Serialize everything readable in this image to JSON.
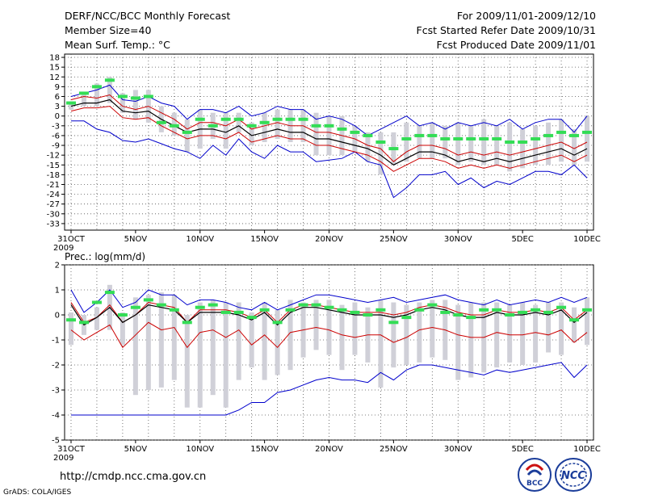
{
  "header": {
    "title": "DERF/NCC/BCC Monthly Forecast",
    "member_size": "Member Size=40",
    "variable": "Mean Surf. Temp.: °C",
    "period": "For 2009/11/01-2009/12/10",
    "start_date": "Fcst Started Refer Date 2009/10/31",
    "produced_date": "Fcst Produced Date 2009/11/01"
  },
  "footer": {
    "url": "http://cmdp.ncc.cma.gov.cn",
    "grads": "GrADS: COLA/IGES",
    "logo_bcc_text": "BCC",
    "logo_ncc_text": "NCC"
  },
  "colors": {
    "ensemble_bar": "#d0d0d8",
    "observed": "#33dd55",
    "max_line": "#0000cc",
    "min_line": "#0000cc",
    "upper_line": "#cc0000",
    "mean_line": "#000000"
  },
  "chart_data": [
    {
      "type": "line",
      "title": "Mean Surf. Temp.: °C",
      "ylim": [
        -35,
        19
      ],
      "yticks": [
        18,
        15,
        12,
        9,
        6,
        3,
        0,
        -3,
        -6,
        -9,
        -12,
        -15,
        -18,
        -21,
        -24,
        -27,
        -30,
        -33
      ],
      "x": [
        1,
        2,
        3,
        4,
        5,
        6,
        7,
        8,
        9,
        10,
        11,
        12,
        13,
        14,
        15,
        16,
        17,
        18,
        19,
        20,
        21,
        22,
        23,
        24,
        25,
        26,
        27,
        28,
        29,
        30,
        31,
        32,
        33,
        34,
        35,
        36,
        37,
        38,
        39,
        40,
        41
      ],
      "xtick_labels": [
        {
          "day": 1,
          "label": "31OCT"
        },
        {
          "day": 6,
          "label": "5NOV"
        },
        {
          "day": 11,
          "label": "10NOV"
        },
        {
          "day": 16,
          "label": "15NOV"
        },
        {
          "day": 21,
          "label": "20NOV"
        },
        {
          "day": 26,
          "label": "25NOV"
        },
        {
          "day": 31,
          "label": "30NOV"
        },
        {
          "day": 36,
          "label": "5DEC"
        },
        {
          "day": 41,
          "label": "10DEC"
        }
      ],
      "year_label": "2009",
      "series": [
        {
          "name": "ensemble max",
          "values": [
            -1.5,
            -1.5,
            -4,
            -5,
            -7.5,
            -8,
            -7,
            -8.5,
            -10,
            -11,
            -13,
            -9,
            -12,
            -7,
            -11,
            -13,
            -9,
            -11,
            -11,
            -14,
            -13.5,
            -13,
            -11,
            -14,
            -15,
            -25,
            -22,
            -18,
            -18,
            -17,
            -21,
            -19,
            -22,
            -20,
            -21,
            -19,
            -17,
            -17,
            -18,
            -15,
            -19
          ]
        },
        {
          "name": "ensemble min",
          "values": [
            6,
            7,
            8,
            9.5,
            5,
            4.5,
            6,
            4,
            3,
            -1,
            2,
            2,
            1,
            3,
            0,
            1,
            3,
            2,
            2,
            -1,
            0,
            -1,
            -3,
            -6,
            -4,
            -2,
            0,
            -3,
            -2,
            -4,
            -2,
            -3,
            -2,
            -3,
            -1,
            -4,
            -2,
            -1,
            -1,
            -5,
            0
          ]
        },
        {
          "name": "upper",
          "values": [
            5,
            6,
            5.5,
            6.5,
            3,
            2,
            3,
            1,
            -1,
            -4,
            -2,
            -2,
            -3,
            -1,
            -4,
            -3,
            -2,
            -3,
            -3,
            -5,
            -5,
            -6,
            -7,
            -9,
            -10,
            -14,
            -11,
            -9,
            -9,
            -10,
            -12,
            -11,
            -12,
            -11,
            -12,
            -11,
            -10,
            -9,
            -8,
            -10,
            -8
          ]
        },
        {
          "name": "mean",
          "values": [
            3,
            4,
            4,
            5,
            1.5,
            1,
            1.5,
            -1,
            -3,
            -5,
            -4,
            -4,
            -5,
            -3,
            -6,
            -5,
            -4,
            -5,
            -5,
            -7,
            -7,
            -8,
            -9,
            -10,
            -12,
            -15,
            -13,
            -11,
            -11,
            -12,
            -14,
            -13,
            -14,
            -13,
            -14,
            -13,
            -12,
            -11,
            -10,
            -12,
            -10
          ]
        },
        {
          "name": "lower",
          "values": [
            1.5,
            2.5,
            2.5,
            3,
            -0.5,
            -1,
            -0.5,
            -3,
            -5,
            -7,
            -6,
            -6,
            -7,
            -5,
            -8,
            -7,
            -6,
            -7,
            -7,
            -9,
            -9,
            -10,
            -11,
            -12,
            -14,
            -17,
            -15,
            -13,
            -13,
            -14,
            -16,
            -15,
            -16,
            -15,
            -16,
            -15,
            -14,
            -13,
            -12,
            -14,
            -12
          ]
        },
        {
          "name": "observed",
          "values": [
            4,
            7,
            9,
            11,
            6,
            5.5,
            6,
            -2,
            -3,
            -5,
            -1,
            -3,
            -1,
            -1,
            -3,
            -2,
            -1,
            -1,
            -1,
            -3,
            -3,
            -4,
            -5,
            -6,
            -8,
            -10,
            -7,
            -6,
            -6,
            -7,
            -7,
            -7,
            -7,
            -7,
            -8,
            -8,
            -7,
            -6,
            -5,
            -6,
            -5
          ]
        },
        {
          "name": "ensemble bar top",
          "values": [
            4,
            7,
            10,
            12,
            7,
            8,
            8,
            3,
            1,
            -1,
            2,
            1,
            1,
            1,
            -2,
            1,
            2,
            2,
            2,
            1,
            0,
            0,
            -3,
            -5,
            -5,
            -5,
            -2,
            -3,
            -2,
            -3,
            -2,
            -3,
            -1,
            -3,
            -2,
            -4,
            -3,
            -2,
            -1,
            -4,
            0
          ]
        },
        {
          "name": "ensemble bar bottom",
          "values": [
            2,
            3,
            3,
            4,
            1,
            -1,
            -2,
            -5,
            -6,
            -11,
            -10,
            -7,
            -10,
            -5,
            -9,
            -8,
            -7,
            -8,
            -8,
            -12,
            -12,
            -12,
            -11,
            -14,
            -18,
            -15,
            -14,
            -13,
            -13,
            -13,
            -15,
            -14,
            -15,
            -15,
            -17,
            -16,
            -15,
            -15,
            -14,
            -15,
            -14
          ]
        }
      ]
    },
    {
      "type": "line",
      "title": "Prec.: log(mm/d)",
      "ylim": [
        -5,
        2
      ],
      "yticks": [
        2,
        1,
        0,
        -1,
        -2,
        -3,
        -4,
        -5
      ],
      "x": [
        1,
        2,
        3,
        4,
        5,
        6,
        7,
        8,
        9,
        10,
        11,
        12,
        13,
        14,
        15,
        16,
        17,
        18,
        19,
        20,
        21,
        22,
        23,
        24,
        25,
        26,
        27,
        28,
        29,
        30,
        31,
        32,
        33,
        34,
        35,
        36,
        37,
        38,
        39,
        40,
        41
      ],
      "xtick_labels": [
        {
          "day": 1,
          "label": "31OCT"
        },
        {
          "day": 6,
          "label": "5NOV"
        },
        {
          "day": 11,
          "label": "10NOV"
        },
        {
          "day": 16,
          "label": "15NOV"
        },
        {
          "day": 21,
          "label": "20NOV"
        },
        {
          "day": 26,
          "label": "25NOV"
        },
        {
          "day": 31,
          "label": "30NOV"
        },
        {
          "day": 36,
          "label": "5DEC"
        },
        {
          "day": 41,
          "label": "10DEC"
        }
      ],
      "year_label": "2009",
      "series": [
        {
          "name": "ensemble max",
          "values": [
            1.0,
            0.1,
            0.5,
            1.0,
            0.3,
            0.5,
            1.0,
            0.8,
            0.8,
            0.4,
            0.6,
            0.6,
            0.5,
            0.3,
            0.2,
            0.5,
            0.2,
            0.4,
            0.6,
            0.8,
            0.8,
            0.7,
            0.6,
            0.5,
            0.6,
            0.7,
            0.5,
            0.6,
            0.7,
            0.8,
            0.6,
            0.5,
            0.4,
            0.6,
            0.4,
            0.5,
            0.6,
            0.5,
            0.7,
            0.5,
            0.7
          ]
        },
        {
          "name": "ensemble min",
          "values": [
            -4,
            -4,
            -4,
            -4,
            -4,
            -4,
            -4,
            -4,
            -4,
            -4,
            -4,
            -4,
            -4,
            -3.8,
            -3.5,
            -3.5,
            -3.1,
            -3.0,
            -2.8,
            -2.6,
            -2.5,
            -2.6,
            -2.6,
            -2.7,
            -2.3,
            -2.6,
            -2.2,
            -2.0,
            -2.0,
            -2.1,
            -2.2,
            -2.3,
            -2.4,
            -2.2,
            -2.3,
            -2.2,
            -2.1,
            -2.0,
            -1.9,
            -2.5,
            -2.0
          ]
        },
        {
          "name": "upper",
          "values": [
            0.5,
            -0.3,
            -0.1,
            0.4,
            -0.3,
            0.0,
            0.5,
            0.4,
            0.3,
            -0.3,
            0.2,
            0.2,
            0.2,
            0.1,
            -0.1,
            0.2,
            -0.3,
            0.2,
            0.4,
            0.4,
            0.3,
            0.2,
            0.1,
            0.1,
            0.1,
            0.0,
            0.1,
            0.3,
            0.4,
            0.3,
            0.1,
            0.0,
            0.0,
            0.2,
            0.1,
            0.1,
            0.2,
            0.1,
            0.3,
            -0.2,
            0.2
          ]
        },
        {
          "name": "mean",
          "values": [
            0.4,
            -0.4,
            -0.1,
            0.3,
            -0.3,
            0.0,
            0.4,
            0.3,
            0.2,
            -0.3,
            0.1,
            0.1,
            0.1,
            0.0,
            -0.2,
            0.1,
            -0.4,
            0.1,
            0.3,
            0.3,
            0.2,
            0.1,
            0.0,
            0.0,
            0.0,
            -0.1,
            0.0,
            0.2,
            0.3,
            0.2,
            0.0,
            -0.1,
            -0.1,
            0.1,
            0.0,
            0.0,
            0.1,
            0.0,
            0.2,
            -0.3,
            0.1
          ]
        },
        {
          "name": "lower",
          "values": [
            -0.6,
            -1.0,
            -0.7,
            -0.4,
            -1.3,
            -0.8,
            -0.3,
            -0.6,
            -0.5,
            -1.3,
            -0.7,
            -0.6,
            -0.9,
            -0.6,
            -1.2,
            -0.8,
            -1.3,
            -0.7,
            -0.6,
            -0.5,
            -0.6,
            -0.8,
            -0.9,
            -0.8,
            -0.8,
            -1.1,
            -0.9,
            -0.6,
            -0.5,
            -0.6,
            -0.8,
            -0.9,
            -0.9,
            -0.7,
            -0.8,
            -0.8,
            -0.7,
            -0.8,
            -0.6,
            -1.1,
            -0.7
          ]
        },
        {
          "name": "observed",
          "values": [
            -0.2,
            -0.3,
            0.5,
            0.9,
            0.0,
            0.3,
            0.6,
            0.4,
            0.2,
            -0.3,
            0.3,
            0.4,
            0.1,
            0.1,
            -0.1,
            0.2,
            -0.3,
            0.2,
            0.4,
            0.4,
            0.3,
            0.2,
            0.1,
            0.0,
            0.2,
            -0.3,
            -0.1,
            0.2,
            0.4,
            0.1,
            0.0,
            -0.1,
            0.2,
            0.2,
            0.0,
            0.1,
            0.2,
            0.1,
            0.3,
            -0.2,
            0.2
          ]
        },
        {
          "name": "ensemble bar top",
          "values": [
            0.1,
            0.0,
            0.3,
            1.2,
            0.1,
            0.7,
            0.8,
            0.9,
            0.8,
            0.0,
            0.5,
            0.6,
            0.5,
            0.5,
            0.1,
            0.5,
            0.2,
            0.6,
            0.5,
            0.6,
            0.6,
            0.4,
            0.5,
            0.3,
            0.6,
            0.5,
            0.4,
            0.5,
            0.6,
            0.6,
            0.4,
            0.5,
            0.5,
            0.5,
            0.4,
            0.5,
            0.4,
            0.5,
            0.5,
            0.3,
            0.7
          ]
        },
        {
          "name": "ensemble bar bottom",
          "values": [
            -1.2,
            -0.8,
            -0.6,
            -0.6,
            -1.2,
            -3.2,
            -3.0,
            -2.9,
            -2.6,
            -3.7,
            -3.7,
            -3.2,
            -3.7,
            -2.6,
            -2.1,
            -2.6,
            -2.4,
            -2.2,
            -1.7,
            -1.4,
            -1.6,
            -2.2,
            -1.6,
            -1.9,
            -2.9,
            -2.1,
            -2.0,
            -1.9,
            -1.7,
            -1.8,
            -2.6,
            -2.5,
            -2.3,
            -2.1,
            -1.9,
            -2.0,
            -1.9,
            -1.5,
            -1.6,
            -1.1,
            -1.2
          ]
        }
      ]
    }
  ]
}
